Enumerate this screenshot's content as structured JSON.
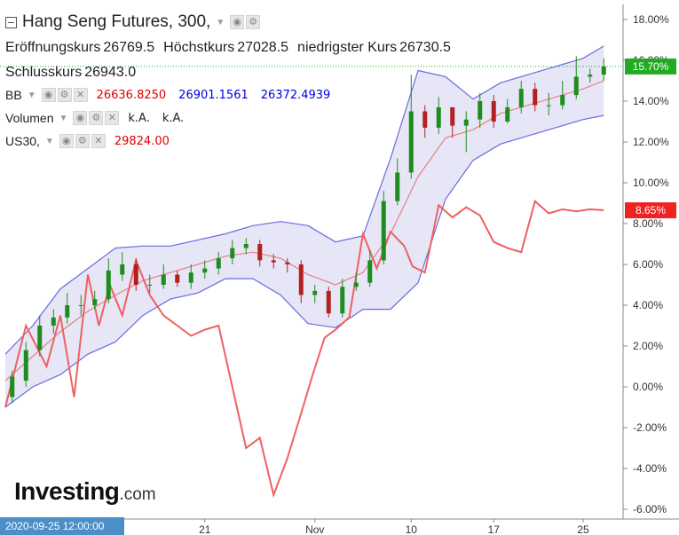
{
  "header": {
    "title": "Hang Seng Futures, 300,",
    "ohlc": [
      {
        "label": "Eröffnungskurs",
        "value": "26769.5"
      },
      {
        "label": "Höchstkurs",
        "value": "27028.5"
      },
      {
        "label": "niedrigster Kurs",
        "value": "26730.5"
      }
    ],
    "close": {
      "label": "Schlusskurs",
      "value": "26943.0"
    }
  },
  "indicators": {
    "bb": {
      "label": "BB",
      "values": [
        "26636.8250",
        "26901.1561",
        "26372.4939"
      ],
      "colors": [
        "#e00000",
        "#0000e0",
        "#0000e0"
      ]
    },
    "volume": {
      "label": "Volumen",
      "values": [
        "k.A.",
        "k.A."
      ]
    },
    "us30": {
      "label": "US30,",
      "value": "29824.00",
      "color": "#e00000"
    }
  },
  "logo": {
    "brand": "Investing",
    "suffix": ".com"
  },
  "crosshair_date": "2020-09-25 12:00:00",
  "chart_data": {
    "type": "line",
    "title": "Hang Seng Futures, 300,",
    "y_axis_unit": "%",
    "yticks": [
      "18.00%",
      "16.00%",
      "14.00%",
      "12.00%",
      "10.00%",
      "8.00%",
      "6.00%",
      "4.00%",
      "2.00%",
      "0.00%",
      "-2.00%",
      "-4.00%",
      "-6.00%"
    ],
    "yticks_values": [
      18,
      16,
      14,
      12,
      10,
      8,
      6,
      4,
      2,
      0,
      -2,
      -4,
      -6
    ],
    "ylim": [
      -6.5,
      18.8
    ],
    "xlim": [
      0,
      44
    ],
    "xticks": [
      {
        "label": "21",
        "x": 14.5
      },
      {
        "label": "Nov",
        "x": 22.5
      },
      {
        "label": "10",
        "x": 29.5
      },
      {
        "label": "17",
        "x": 35.5
      },
      {
        "label": "25",
        "x": 42
      }
    ],
    "last_labels": [
      {
        "text": "15.70%",
        "value": 15.7,
        "color": "#22aa22"
      },
      {
        "text": "8.65%",
        "value": 8.65,
        "color": "#ee2222"
      }
    ],
    "series": [
      {
        "name": "Hang Seng Futures",
        "kind": "candlestick",
        "color_up": "#1e8c1e",
        "color_down": "#b22020",
        "x": [
          0.5,
          1.5,
          2.5,
          3.5,
          4.5,
          5.5,
          6.5,
          7.5,
          8.5,
          9.5,
          10.5,
          11.5,
          12.5,
          13.5,
          14.5,
          15.5,
          16.5,
          17.5,
          18.5,
          19.5,
          20.5,
          21.5,
          22.5,
          23.5,
          24.5,
          25.5,
          26.5,
          27.5,
          28.5,
          29.5,
          30.5,
          31.5,
          32.5,
          33.5,
          34.5,
          35.5,
          36.5,
          37.5,
          38.5,
          39.5,
          40.5,
          41.5,
          42.5,
          43.5
        ],
        "close": [
          0.5,
          1.8,
          3,
          3.4,
          4,
          4,
          4.3,
          5.7,
          6,
          5,
          5,
          5.5,
          5.1,
          5.6,
          5.8,
          6.3,
          6.8,
          7,
          6.2,
          6.1,
          6,
          4.5,
          4.7,
          3.6,
          4.9,
          5.1,
          6.2,
          9.1,
          10.5,
          13.5,
          12.7,
          13.7,
          12.8,
          13.1,
          14,
          13,
          13.7,
          14.6,
          13.8,
          13.8,
          14.3,
          15.2,
          15.3,
          15.7
        ],
        "open": [
          -0.5,
          0.3,
          1.8,
          3,
          3.4,
          4,
          4,
          4.3,
          5.5,
          6,
          5,
          5,
          5.5,
          5.1,
          5.6,
          5.8,
          6.3,
          6.8,
          7,
          6.2,
          6.1,
          6,
          4.5,
          4.7,
          3.6,
          4.9,
          5.1,
          6.2,
          9.1,
          10.5,
          13.5,
          12.7,
          13.7,
          12.8,
          13.1,
          14,
          13,
          13.7,
          14.6,
          13.8,
          13.8,
          14.3,
          15.2,
          15.3
        ],
        "high": [
          0.8,
          2.2,
          3.5,
          3.8,
          4.6,
          4.5,
          4.7,
          6.3,
          6.6,
          6.3,
          5.5,
          6,
          5.7,
          6,
          6.2,
          6.6,
          7.2,
          7.3,
          7.2,
          6.5,
          6.3,
          6.2,
          5,
          4.9,
          5.3,
          5.6,
          6.7,
          9.6,
          11.2,
          15.3,
          13.8,
          14.2,
          13.6,
          13.5,
          14.4,
          14.3,
          14.1,
          15,
          14.9,
          14.4,
          15,
          16.2,
          15.6,
          16.1
        ],
        "low": [
          -0.8,
          0,
          1.5,
          2.6,
          3.1,
          3.5,
          3.8,
          4.1,
          5.2,
          4.7,
          4.6,
          4.8,
          4.9,
          4.8,
          5.3,
          5.5,
          6,
          6.5,
          5.9,
          5.8,
          5.6,
          4.1,
          4.1,
          3.4,
          3.4,
          4.7,
          4.9,
          6,
          8.9,
          10.2,
          12.2,
          12.4,
          12.2,
          11.5,
          12.7,
          12.7,
          12.9,
          13.4,
          13.5,
          13.3,
          13.6,
          14.1,
          14.9,
          15
        ]
      },
      {
        "name": "US30",
        "kind": "line",
        "color": "#f06060",
        "x": [
          0,
          1.5,
          3,
          4,
          5,
          6,
          6.8,
          7.6,
          8.5,
          9.5,
          10.5,
          11.5,
          12.5,
          13.5,
          14.5,
          15.5,
          16.5,
          17.5,
          18.5,
          19.5,
          20.5,
          21.5,
          22.3,
          23.2,
          24,
          25,
          26,
          27,
          28,
          29,
          29.6,
          30.5,
          31.5,
          32.5,
          33.5,
          34.5,
          35.5,
          36.5,
          37.5,
          38.5,
          39.5,
          40.5,
          41.5,
          42.5,
          43.5
        ],
        "y": [
          -1,
          3,
          1,
          3.5,
          -0.5,
          5.5,
          3,
          5,
          3.5,
          6.2,
          4.5,
          3.5,
          3,
          2.5,
          2.8,
          3,
          0,
          -3,
          -2.5,
          -5.3,
          -3.5,
          -1.3,
          0.5,
          2.4,
          2.8,
          3.4,
          7.5,
          5.8,
          7.6,
          6.9,
          5.9,
          5.6,
          8.9,
          8.3,
          8.8,
          8.4,
          7.1,
          6.8,
          6.6,
          9.1,
          8.5,
          8.7,
          8.6,
          8.7,
          8.65
        ]
      },
      {
        "name": "BB",
        "kind": "band",
        "fill": "#c8c8ee",
        "x": [
          0,
          2,
          4,
          6,
          8,
          10,
          12,
          14,
          16,
          18,
          20,
          22,
          24,
          26,
          28,
          30,
          32,
          34,
          36,
          38,
          40,
          42,
          43.5
        ],
        "mid": [
          0.3,
          1.5,
          2.7,
          3.7,
          4.5,
          5.2,
          5.6,
          6,
          6.4,
          6.6,
          6.3,
          5.5,
          5,
          5.6,
          7.5,
          10.3,
          12.2,
          12.6,
          13.4,
          13.8,
          14.2,
          14.6,
          15
        ],
        "upper": [
          1.6,
          3,
          4.8,
          5.8,
          6.8,
          6.9,
          6.9,
          7.2,
          7.5,
          7.9,
          8.1,
          7.9,
          7.1,
          7.4,
          11.2,
          15.5,
          15.2,
          14.1,
          14.9,
          15.3,
          15.7,
          16.1,
          16.7
        ],
        "lower": [
          -1,
          0,
          0.6,
          1.6,
          2.2,
          3.5,
          4.3,
          4.6,
          5.3,
          5.3,
          4.5,
          3.1,
          2.9,
          3.8,
          3.8,
          5.1,
          9.2,
          11.1,
          11.9,
          12.3,
          12.7,
          13.1,
          13.3
        ]
      }
    ],
    "legend": "top-left",
    "grid": false
  }
}
